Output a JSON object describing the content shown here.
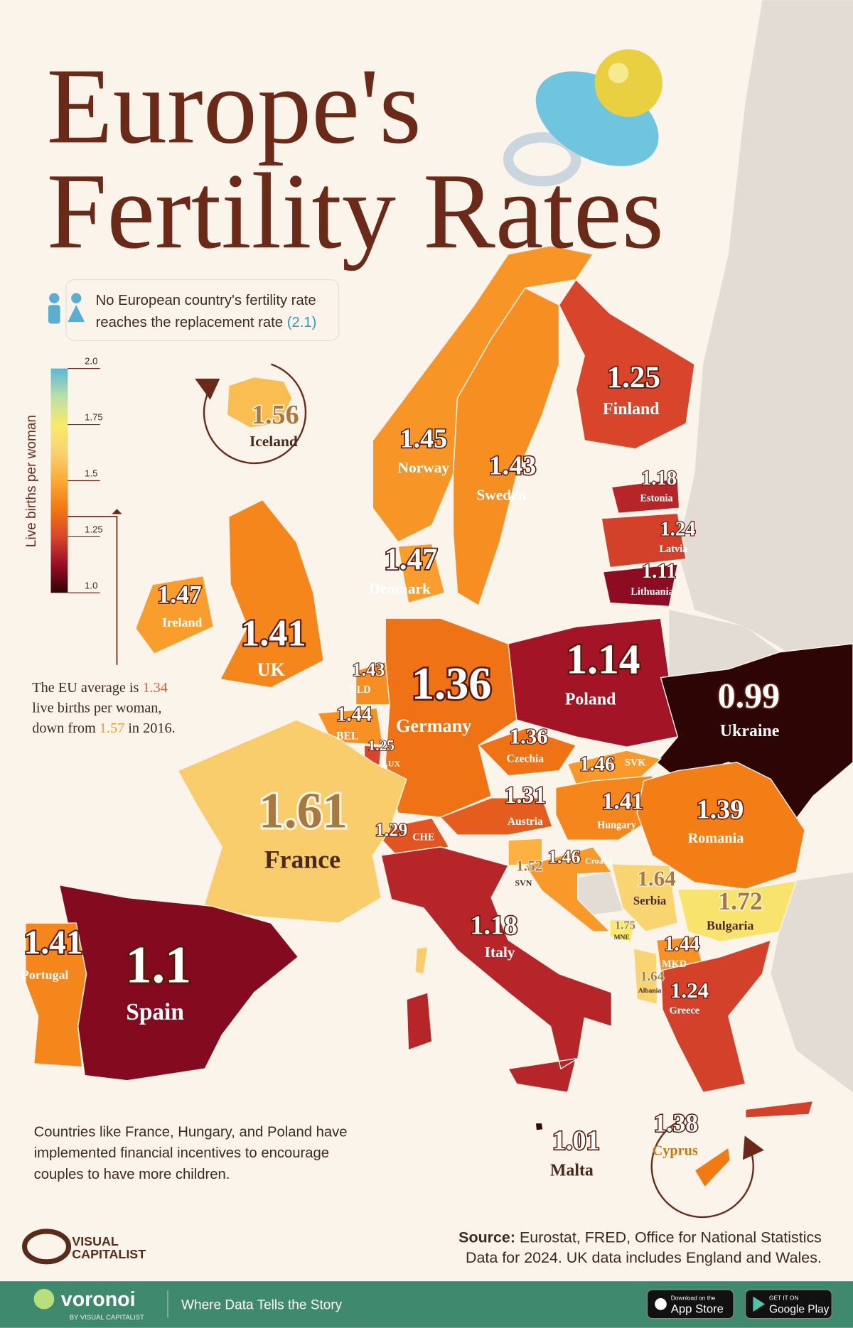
{
  "header": {
    "title_line1": "Europe's",
    "title_line2": "Fertility Rates"
  },
  "replacement_note": {
    "line1": "No European country's fertility rate",
    "line2": "reaches the replacement rate",
    "replacement_rate_label": "(2.1)"
  },
  "legend": {
    "title": "Live births per woman",
    "ticks": [
      {
        "value": 2,
        "label": "2.0"
      },
      1.75,
      1.5,
      1.25,
      {
        "value": 1,
        "label": "1.0"
      }
    ],
    "colors": [
      "#2e0505",
      "#9a0d26",
      "#d9452a",
      "#f27812",
      "#fba935",
      "#f9d272",
      "#f8ea6a",
      "#b8e0a8",
      "#5ab8d6"
    ]
  },
  "eu_note": {
    "text1": "The EU average is",
    "average": 1.34,
    "text2": "live births per woman,",
    "text3": "down from",
    "previous": 1.57,
    "text4": "in 2016."
  },
  "countries": [
    {
      "name": "Iceland",
      "value": 1.56
    },
    {
      "name": "Norway",
      "value": 1.45
    },
    {
      "name": "Sweden",
      "value": 1.43
    },
    {
      "name": "Finland",
      "value": 1.25
    },
    {
      "name": "Estonia",
      "value": 1.18
    },
    {
      "name": "Latvia",
      "value": 1.24
    },
    {
      "name": "Lithuania",
      "value": 1.11
    },
    {
      "name": "Denmark",
      "value": 1.47
    },
    {
      "name": "Ireland",
      "value": 1.47
    },
    {
      "name": "UK",
      "value": 1.41
    },
    {
      "name": "NLD",
      "value": 1.43
    },
    {
      "name": "BEL",
      "value": 1.44
    },
    {
      "name": "LUX",
      "value": 1.25
    },
    {
      "name": "Germany",
      "value": 1.36
    },
    {
      "name": "Poland",
      "value": 1.14
    },
    {
      "name": "Ukraine",
      "value": 0.99
    },
    {
      "name": "Czechia",
      "value": 1.36
    },
    {
      "name": "SVK",
      "value": 1.46
    },
    {
      "name": "Austria",
      "value": 1.31
    },
    {
      "name": "Hungary",
      "value": 1.41
    },
    {
      "name": "Romania",
      "value": 1.39
    },
    {
      "name": "CHE",
      "value": 1.29
    },
    {
      "name": "France",
      "value": 1.61
    },
    {
      "name": "SVN",
      "value": 1.52
    },
    {
      "name": "Croatia",
      "value": 1.46
    },
    {
      "name": "Serbia",
      "value": 1.64
    },
    {
      "name": "Bulgaria",
      "value": 1.72
    },
    {
      "name": "MNE",
      "value": 1.75
    },
    {
      "name": "MKD",
      "value": 1.44
    },
    {
      "name": "Albania",
      "value": 1.64
    },
    {
      "name": "Greece",
      "value": 1.24
    },
    {
      "name": "Italy",
      "value": 1.18
    },
    {
      "name": "Spain",
      "value": 1.1
    },
    {
      "name": "Portugal",
      "value": 1.41
    },
    {
      "name": "Malta",
      "value": 1.01
    },
    {
      "name": "Cyprus",
      "value": 1.38
    }
  ],
  "incentives_note": [
    "Countries like France, Hungary, and Poland have",
    "implemented financial incentives to encourage",
    "couples to have more children."
  ],
  "source": {
    "label": "Source:",
    "text": "Eurostat, FRED, Office for National Statistics",
    "note": "Data for 2024. UK data includes England and Wales."
  },
  "brand": {
    "line1": "VISUAL",
    "line2": "CAPITALIST"
  },
  "footer": {
    "logo": "voronoi",
    "logo_sub": "BY VISUAL CAPITALIST",
    "tagline": "Where Data Tells the Story",
    "app_store_small": "Download on the",
    "app_store": "App Store",
    "google_small": "GET IT ON",
    "google": "Google Play"
  }
}
